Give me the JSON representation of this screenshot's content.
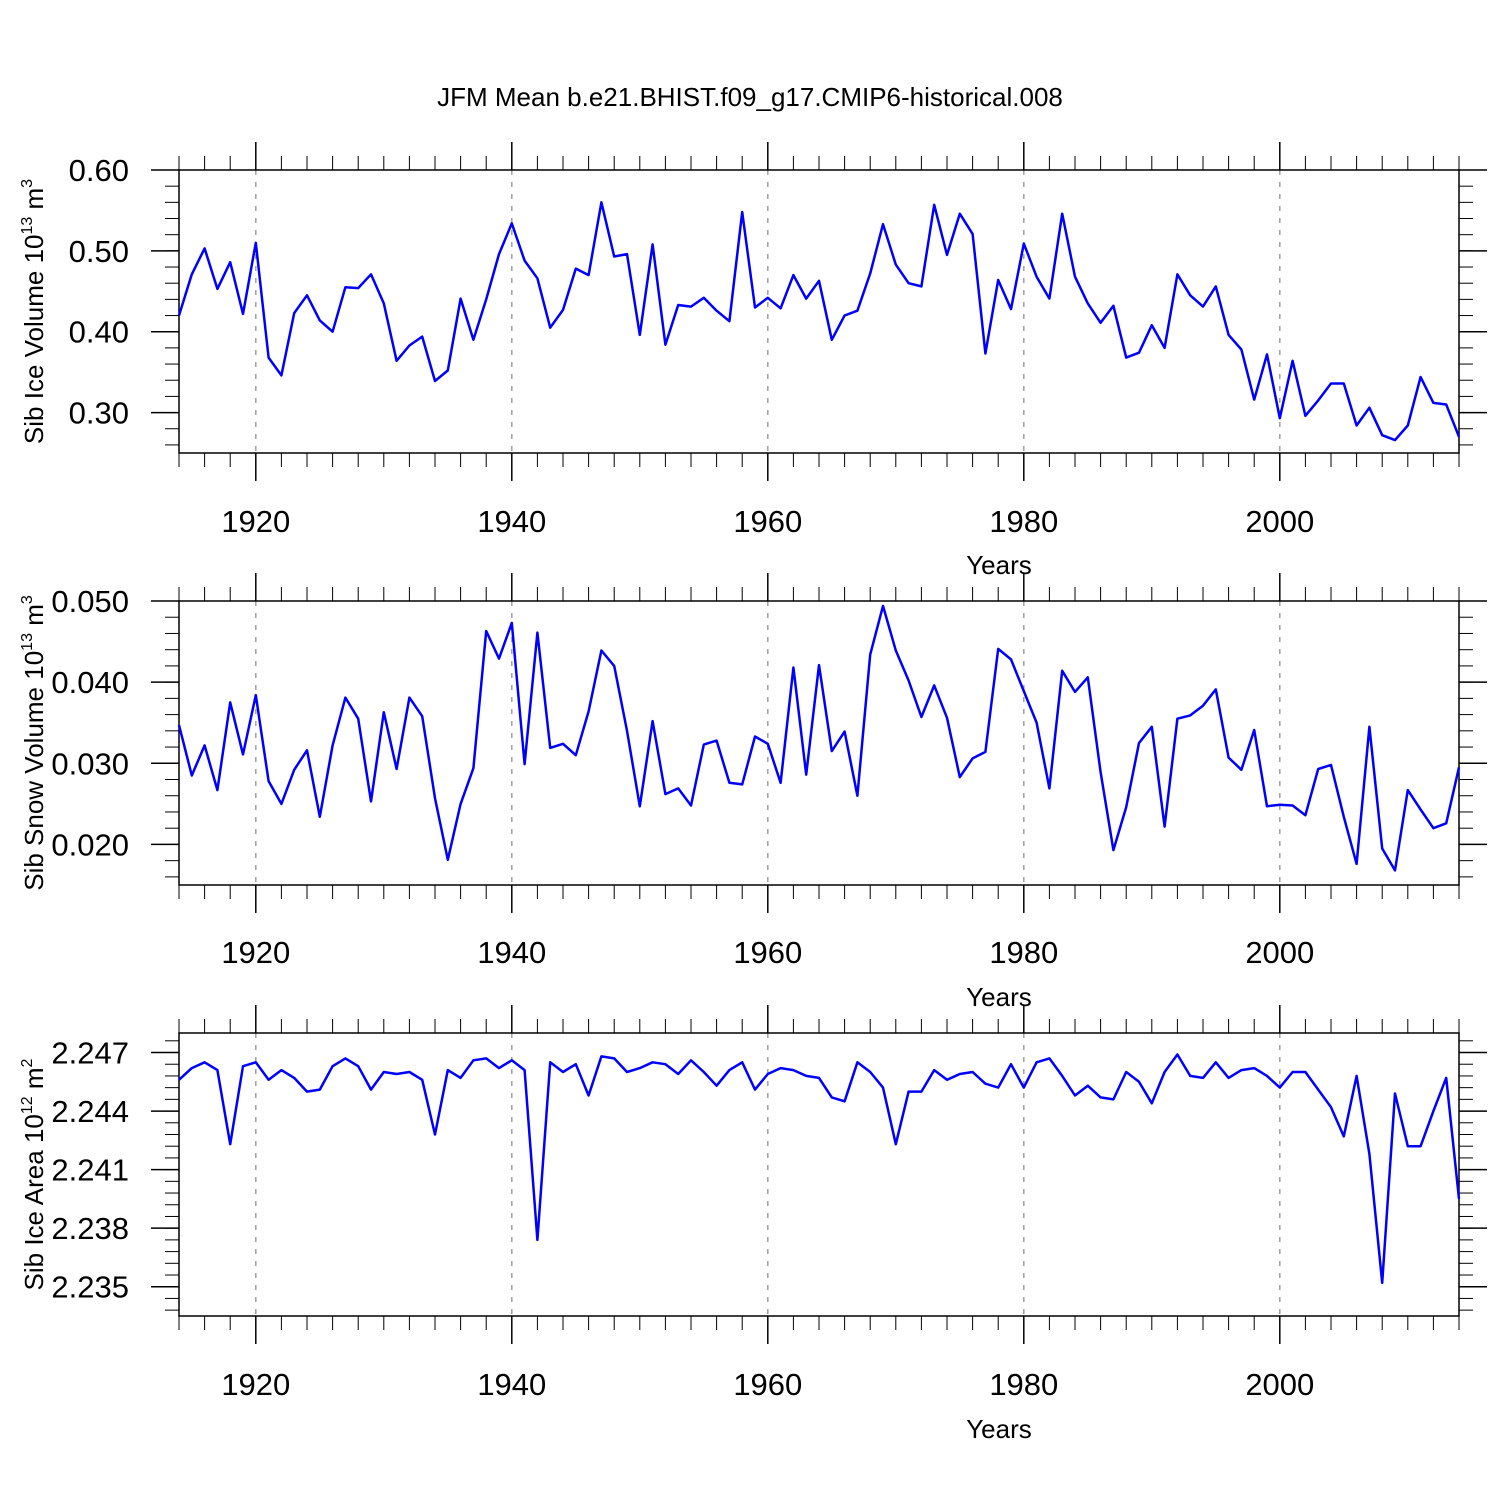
{
  "figure": {
    "title": "JFM Mean b.e21.BHIST.f09_g17.CMIP6-historical.008"
  },
  "chart_data": [
    {
      "type": "line",
      "ylabel": "Sib Ice Volume",
      "ylabel_unit_base": "10",
      "ylabel_unit_exp": "13",
      "ylabel_unit_m": "m",
      "ylabel_unit_mexp": "3",
      "xlabel": "Years",
      "xlim": [
        1914,
        2014
      ],
      "ylim": [
        0.25,
        0.6
      ],
      "xticks": [
        1920,
        1940,
        1960,
        1980,
        2000
      ],
      "xtick_labels": [
        "1920",
        "1940",
        "1960",
        "1980",
        "2000"
      ],
      "yticks": [
        0.3,
        0.4,
        0.5,
        0.6
      ],
      "ytick_labels": [
        "0.30",
        "0.40",
        "0.50",
        "0.60"
      ],
      "x_start": 1914,
      "x_step": 1,
      "line_color": "#0000ff",
      "grid": "vertical dashed at major x ticks",
      "series": [
        {
          "values": [
            0.42,
            0.471,
            0.503,
            0.453,
            0.486,
            0.422,
            0.51,
            0.368,
            0.346,
            0.423,
            0.445,
            0.414,
            0.4,
            0.455,
            0.454,
            0.471,
            0.435,
            0.364,
            0.383,
            0.394,
            0.339,
            0.352,
            0.441,
            0.39,
            0.44,
            0.496,
            0.534,
            0.488,
            0.466,
            0.405,
            0.427,
            0.478,
            0.47,
            0.56,
            0.493,
            0.496,
            0.396,
            0.508,
            0.384,
            0.433,
            0.431,
            0.442,
            0.426,
            0.413,
            0.548,
            0.43,
            0.442,
            0.429,
            0.47,
            0.441,
            0.463,
            0.39,
            0.42,
            0.426,
            0.472,
            0.533,
            0.483,
            0.46,
            0.456,
            0.557,
            0.495,
            0.546,
            0.521,
            0.373,
            0.464,
            0.428,
            0.509,
            0.468,
            0.441,
            0.546,
            0.468,
            0.435,
            0.411,
            0.432,
            0.368,
            0.374,
            0.408,
            0.38,
            0.471,
            0.445,
            0.431,
            0.456,
            0.396,
            0.378,
            0.316,
            0.372,
            0.293,
            0.364,
            0.296,
            0.315,
            0.336,
            0.336,
            0.284,
            0.306,
            0.272,
            0.266,
            0.284,
            0.344,
            0.312,
            0.31,
            0.27
          ]
        }
      ]
    },
    {
      "type": "line",
      "ylabel": "Sib Snow Volume",
      "ylabel_unit_base": "10",
      "ylabel_unit_exp": "13",
      "ylabel_unit_m": "m",
      "ylabel_unit_mexp": "3",
      "xlabel": "Years",
      "xlim": [
        1914,
        2014
      ],
      "ylim": [
        0.015,
        0.05
      ],
      "xticks": [
        1920,
        1940,
        1960,
        1980,
        2000
      ],
      "xtick_labels": [
        "1920",
        "1940",
        "1960",
        "1980",
        "2000"
      ],
      "yticks": [
        0.02,
        0.03,
        0.04,
        0.05
      ],
      "ytick_labels": [
        "0.020",
        "0.030",
        "0.040",
        "0.050"
      ],
      "x_start": 1914,
      "x_step": 1,
      "line_color": "#0000ff",
      "grid": "vertical dashed at major x ticks",
      "series": [
        {
          "values": [
            0.0347,
            0.0285,
            0.0322,
            0.0267,
            0.0375,
            0.0311,
            0.0384,
            0.0278,
            0.025,
            0.0292,
            0.0316,
            0.0234,
            0.0322,
            0.0381,
            0.0355,
            0.0253,
            0.0363,
            0.0293,
            0.0381,
            0.0358,
            0.0257,
            0.0181,
            0.025,
            0.0294,
            0.0463,
            0.0429,
            0.0473,
            0.0299,
            0.0461,
            0.0319,
            0.0324,
            0.031,
            0.0364,
            0.0439,
            0.042,
            0.034,
            0.0247,
            0.0352,
            0.0262,
            0.0269,
            0.0248,
            0.0323,
            0.0328,
            0.0276,
            0.0274,
            0.0333,
            0.0324,
            0.0276,
            0.0418,
            0.0286,
            0.0421,
            0.0315,
            0.0339,
            0.026,
            0.0434,
            0.0494,
            0.0439,
            0.0402,
            0.0357,
            0.0396,
            0.0356,
            0.0283,
            0.0306,
            0.0314,
            0.0441,
            0.0428,
            0.0389,
            0.035,
            0.0269,
            0.0414,
            0.0388,
            0.0406,
            0.0289,
            0.0193,
            0.0246,
            0.0325,
            0.0345,
            0.0222,
            0.0355,
            0.0359,
            0.0371,
            0.0391,
            0.0307,
            0.0292,
            0.0341,
            0.0247,
            0.0249,
            0.0248,
            0.0236,
            0.0293,
            0.0298,
            0.0234,
            0.0176,
            0.0345,
            0.0195,
            0.0168,
            0.0267,
            0.0243,
            0.022,
            0.0226,
            0.0295
          ]
        }
      ]
    },
    {
      "type": "line",
      "ylabel": "Sib Ice Area",
      "ylabel_unit_base": "10",
      "ylabel_unit_exp": "12",
      "ylabel_unit_m": "m",
      "ylabel_unit_mexp": "2",
      "xlabel": "Years",
      "xlim": [
        1914,
        2014
      ],
      "ylim": [
        2.2335,
        2.248
      ],
      "xticks": [
        1920,
        1940,
        1960,
        1980,
        2000
      ],
      "xtick_labels": [
        "1920",
        "1940",
        "1960",
        "1980",
        "2000"
      ],
      "yticks": [
        2.235,
        2.238,
        2.241,
        2.244,
        2.247
      ],
      "ytick_labels": [
        "2.235",
        "2.238",
        "2.241",
        "2.244",
        "2.247"
      ],
      "x_start": 1914,
      "x_step": 1,
      "line_color": "#0000ff",
      "grid": "vertical dashed at major x ticks",
      "series": [
        {
          "values": [
            2.2456,
            2.2462,
            2.2465,
            2.2461,
            2.2423,
            2.2463,
            2.2465,
            2.2456,
            2.2461,
            2.2457,
            2.245,
            2.2451,
            2.2463,
            2.2467,
            2.2463,
            2.2451,
            2.246,
            2.2459,
            2.246,
            2.2456,
            2.2428,
            2.2461,
            2.2457,
            2.2466,
            2.2467,
            2.2462,
            2.2466,
            2.2461,
            2.2374,
            2.2465,
            2.246,
            2.2464,
            2.2448,
            2.2468,
            2.2467,
            2.246,
            2.2462,
            2.2465,
            2.2464,
            2.2459,
            2.2466,
            2.246,
            2.2453,
            2.2461,
            2.2465,
            2.2451,
            2.2459,
            2.2462,
            2.2461,
            2.2458,
            2.2457,
            2.2447,
            2.2445,
            2.2465,
            2.246,
            2.2452,
            2.2423,
            2.245,
            2.245,
            2.2461,
            2.2456,
            2.2459,
            2.246,
            2.2454,
            2.2452,
            2.2464,
            2.2452,
            2.2465,
            2.2467,
            2.2458,
            2.2448,
            2.2453,
            2.2447,
            2.2446,
            2.246,
            2.2455,
            2.2444,
            2.246,
            2.2469,
            2.2458,
            2.2457,
            2.2465,
            2.2457,
            2.2461,
            2.2462,
            2.2458,
            2.2452,
            2.246,
            2.246,
            2.2451,
            2.2442,
            2.2427,
            2.2458,
            2.2418,
            2.2352,
            2.2449,
            2.2422,
            2.2422,
            2.244,
            2.2457,
            2.2395
          ]
        }
      ]
    }
  ]
}
